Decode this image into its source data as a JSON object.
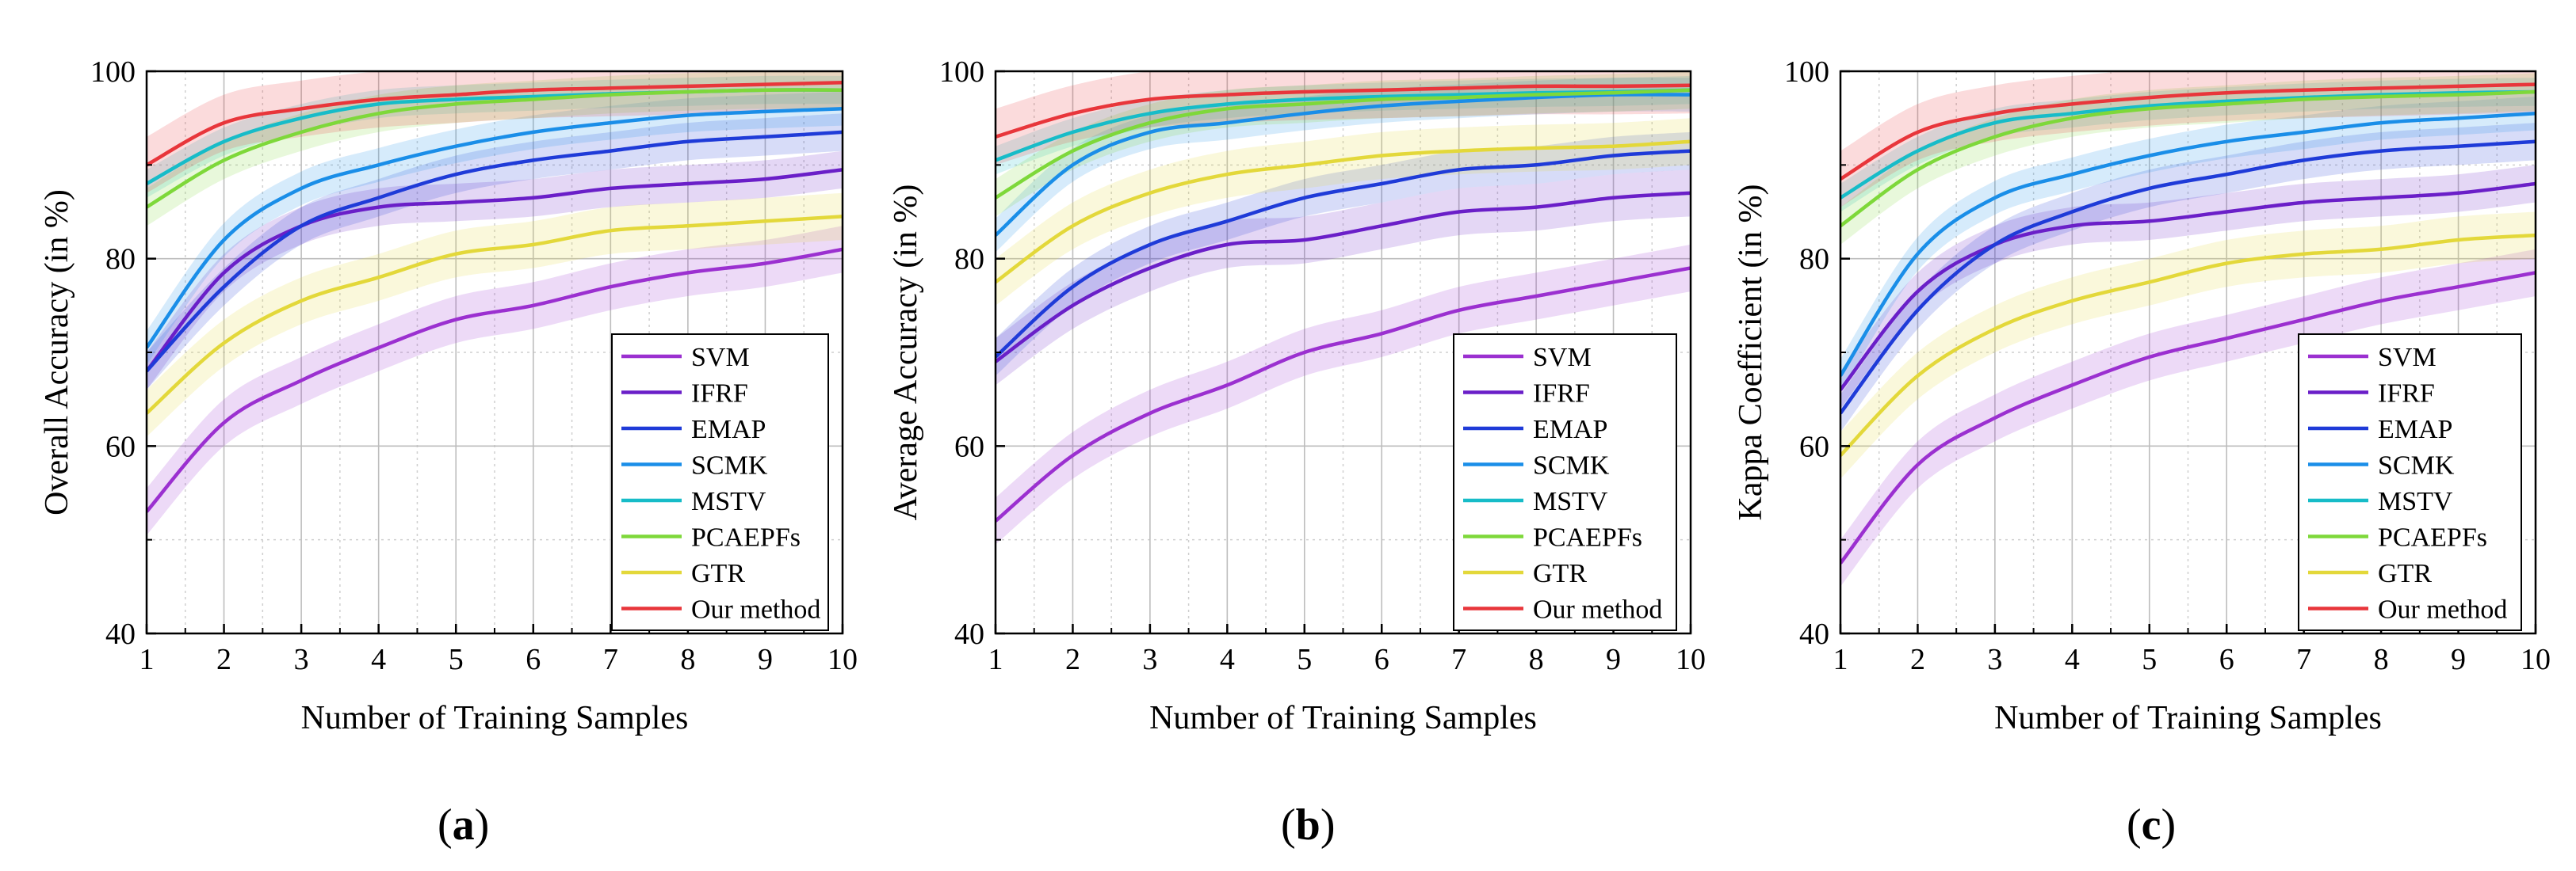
{
  "chart_data": [
    {
      "type": "line",
      "panel_label": "a",
      "xlabel": "Number of Training Samples",
      "ylabel": "Overall Accuracy (in %)",
      "x": [
        1,
        2,
        3,
        4,
        5,
        6,
        7,
        8,
        9,
        10
      ],
      "xticks": [
        "1",
        "2",
        "3",
        "4",
        "5",
        "6",
        "7",
        "8",
        "9",
        "10"
      ],
      "yticks": [
        "40",
        "60",
        "80",
        "100"
      ],
      "xlim": [
        1,
        10
      ],
      "ylim": [
        40,
        100
      ],
      "grid": true,
      "legend_position": "bottom-right",
      "series": [
        {
          "name": "SVM",
          "color": "#9B30D0",
          "band": 2.5,
          "values": [
            53,
            62.5,
            67,
            70.5,
            73.5,
            75,
            77,
            78.5,
            79.5,
            81
          ]
        },
        {
          "name": "IFRF",
          "color": "#6A1FC8",
          "band": 2,
          "values": [
            68,
            78.5,
            83.5,
            85.5,
            86,
            86.5,
            87.5,
            88,
            88.5,
            89.5
          ]
        },
        {
          "name": "EMAP",
          "color": "#1F3BD8",
          "band": 2,
          "values": [
            68,
            77,
            83.5,
            86.5,
            89,
            90.5,
            91.5,
            92.5,
            93,
            93.5
          ]
        },
        {
          "name": "SCMK",
          "color": "#1A8EE8",
          "band": 1.8,
          "values": [
            70.5,
            82,
            87.5,
            90,
            92,
            93.5,
            94.5,
            95.3,
            95.7,
            96
          ]
        },
        {
          "name": "MSTV",
          "color": "#17BCC8",
          "band": 1.5,
          "values": [
            88,
            92.5,
            95,
            96.5,
            97,
            97.3,
            97.6,
            97.8,
            98,
            98
          ]
        },
        {
          "name": "PCAEPFs",
          "color": "#7ED83A",
          "band": 2,
          "values": [
            85.5,
            90.5,
            93.5,
            95.5,
            96.5,
            97,
            97.5,
            97.8,
            98,
            98
          ]
        },
        {
          "name": "GTR",
          "color": "#E3D83A",
          "band": 2.5,
          "values": [
            63.5,
            71,
            75.5,
            78,
            80.5,
            81.5,
            83,
            83.5,
            84,
            84.5
          ]
        },
        {
          "name": "Our method",
          "color": "#E8363B",
          "band": 3,
          "values": [
            90,
            94.5,
            96,
            97,
            97.5,
            98,
            98.2,
            98.4,
            98.6,
            98.8
          ]
        }
      ],
      "legend": [
        "SVM",
        "IFRF",
        "EMAP",
        "SCMK",
        "MSTV",
        "PCAEPFs",
        "GTR",
        "Our method"
      ]
    },
    {
      "type": "line",
      "panel_label": "b",
      "xlabel": "Number of Training Samples",
      "ylabel": "Average Accuracy (in %)",
      "x": [
        1,
        2,
        3,
        4,
        5,
        6,
        7,
        8,
        9,
        10
      ],
      "xticks": [
        "1",
        "2",
        "3",
        "4",
        "5",
        "6",
        "7",
        "8",
        "9",
        "10"
      ],
      "yticks": [
        "40",
        "60",
        "80",
        "100"
      ],
      "xlim": [
        1,
        10
      ],
      "ylim": [
        40,
        100
      ],
      "grid": true,
      "legend_position": "bottom-right",
      "series": [
        {
          "name": "SVM",
          "color": "#9B30D0",
          "band": 2.5,
          "values": [
            52,
            59,
            63.5,
            66.5,
            70,
            72,
            74.5,
            76,
            77.5,
            79
          ]
        },
        {
          "name": "IFRF",
          "color": "#6A1FC8",
          "band": 2.5,
          "values": [
            69,
            75,
            79,
            81.5,
            82,
            83.5,
            85,
            85.5,
            86.5,
            87
          ]
        },
        {
          "name": "EMAP",
          "color": "#1F3BD8",
          "band": 2,
          "values": [
            69.5,
            77,
            81.5,
            84,
            86.5,
            88,
            89.5,
            90,
            91,
            91.5
          ]
        },
        {
          "name": "SCMK",
          "color": "#1A8EE8",
          "band": 1.8,
          "values": [
            82.5,
            90,
            93.5,
            94.5,
            95.5,
            96.3,
            96.8,
            97.2,
            97.5,
            97.5
          ]
        },
        {
          "name": "MSTV",
          "color": "#17BCC8",
          "band": 1.5,
          "values": [
            90.5,
            93.5,
            95.5,
            96.5,
            97,
            97.3,
            97.5,
            97.7,
            97.8,
            98
          ]
        },
        {
          "name": "PCAEPFs",
          "color": "#7ED83A",
          "band": 2,
          "values": [
            86.5,
            91.5,
            94.5,
            96,
            96.5,
            97,
            97.2,
            97.5,
            97.7,
            98
          ]
        },
        {
          "name": "GTR",
          "color": "#E3D83A",
          "band": 2.5,
          "values": [
            77.5,
            83.5,
            87,
            89,
            90,
            91,
            91.5,
            91.8,
            92,
            92.5
          ]
        },
        {
          "name": "Our method",
          "color": "#E8363B",
          "band": 3,
          "values": [
            93,
            95.5,
            97,
            97.5,
            97.8,
            98,
            98.2,
            98.4,
            98.4,
            98.5
          ]
        }
      ],
      "legend": [
        "SVM",
        "IFRF",
        "EMAP",
        "SCMK",
        "MSTV",
        "PCAEPFs",
        "GTR",
        "Our method"
      ]
    },
    {
      "type": "line",
      "panel_label": "c",
      "xlabel": "Number of Training Samples",
      "ylabel": "Kappa Coefficient (in %)",
      "x": [
        1,
        2,
        3,
        4,
        5,
        6,
        7,
        8,
        9,
        10
      ],
      "xticks": [
        "1",
        "2",
        "3",
        "4",
        "5",
        "6",
        "7",
        "8",
        "9",
        "10"
      ],
      "yticks": [
        "40",
        "60",
        "80",
        "100"
      ],
      "xlim": [
        1,
        10
      ],
      "ylim": [
        40,
        100
      ],
      "grid": true,
      "legend_position": "bottom-right",
      "series": [
        {
          "name": "SVM",
          "color": "#9B30D0",
          "band": 2.5,
          "values": [
            47.5,
            58,
            63,
            66.5,
            69.5,
            71.5,
            73.5,
            75.5,
            77,
            78.5
          ]
        },
        {
          "name": "IFRF",
          "color": "#6A1FC8",
          "band": 2,
          "values": [
            66,
            76.5,
            81.5,
            83.5,
            84,
            85,
            86,
            86.5,
            87,
            88
          ]
        },
        {
          "name": "EMAP",
          "color": "#1F3BD8",
          "band": 2,
          "values": [
            63.5,
            74.5,
            81.5,
            85,
            87.5,
            89,
            90.5,
            91.5,
            92,
            92.5
          ]
        },
        {
          "name": "SCMK",
          "color": "#1A8EE8",
          "band": 1.8,
          "values": [
            67.5,
            80.5,
            86.5,
            89,
            91,
            92.5,
            93.5,
            94.5,
            95,
            95.5
          ]
        },
        {
          "name": "MSTV",
          "color": "#17BCC8",
          "band": 1.5,
          "values": [
            86.5,
            91.5,
            94.5,
            95.5,
            96.3,
            96.8,
            97.2,
            97.5,
            97.7,
            97.8
          ]
        },
        {
          "name": "PCAEPFs",
          "color": "#7ED83A",
          "band": 2,
          "values": [
            83.5,
            89.5,
            93,
            95,
            96,
            96.5,
            97,
            97.3,
            97.5,
            97.8
          ]
        },
        {
          "name": "GTR",
          "color": "#E3D83A",
          "band": 2.5,
          "values": [
            59,
            67.5,
            72.5,
            75.5,
            77.5,
            79.5,
            80.5,
            81,
            82,
            82.5
          ]
        },
        {
          "name": "Our method",
          "color": "#E8363B",
          "band": 3,
          "values": [
            88.5,
            93.5,
            95.5,
            96.5,
            97.2,
            97.7,
            98,
            98.2,
            98.4,
            98.6
          ]
        }
      ],
      "legend": [
        "SVM",
        "IFRF",
        "EMAP",
        "SCMK",
        "MSTV",
        "PCAEPFs",
        "GTR",
        "Our method"
      ]
    }
  ]
}
